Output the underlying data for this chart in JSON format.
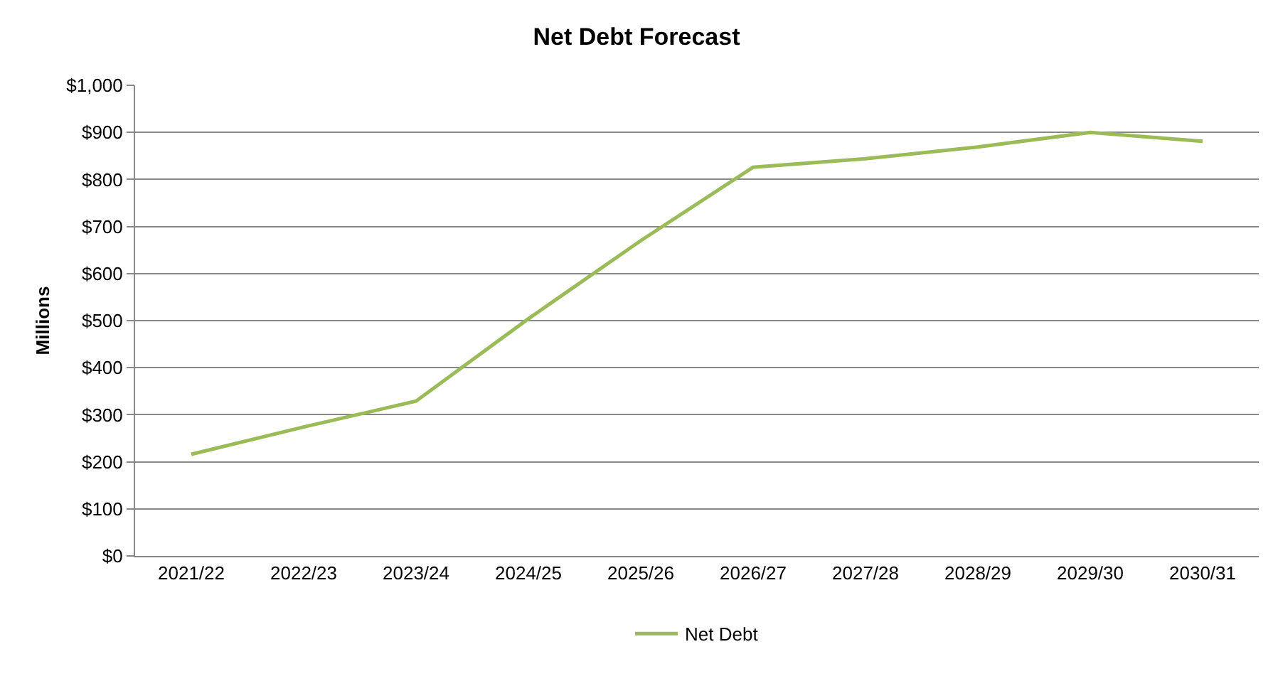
{
  "chart_data": {
    "type": "line",
    "title": "Net Debt Forecast",
    "ylabel": "Millions",
    "categories": [
      "2021/22",
      "2022/23",
      "2023/24",
      "2024/25",
      "2025/26",
      "2026/27",
      "2027/28",
      "2028/29",
      "2029/30",
      "2030/31"
    ],
    "series": [
      {
        "name": "Net Debt",
        "color": "#9bbb59",
        "values": [
          216,
          274,
          329,
          504,
          670,
          826,
          844,
          869,
          900,
          881
        ]
      }
    ],
    "ylim": [
      0,
      1000
    ],
    "yticks": [
      {
        "value": 0,
        "label": "$0"
      },
      {
        "value": 100,
        "label": "$100"
      },
      {
        "value": 200,
        "label": "$200"
      },
      {
        "value": 300,
        "label": "$300"
      },
      {
        "value": 400,
        "label": "$400"
      },
      {
        "value": 500,
        "label": "$500"
      },
      {
        "value": 600,
        "label": "$600"
      },
      {
        "value": 700,
        "label": "$700"
      },
      {
        "value": 800,
        "label": "$800"
      },
      {
        "value": 900,
        "label": "$900"
      },
      {
        "value": 1000,
        "label": "$1,000"
      }
    ],
    "grid": "y",
    "legend": "bottom",
    "marker": "none",
    "line_style": "solid"
  }
}
